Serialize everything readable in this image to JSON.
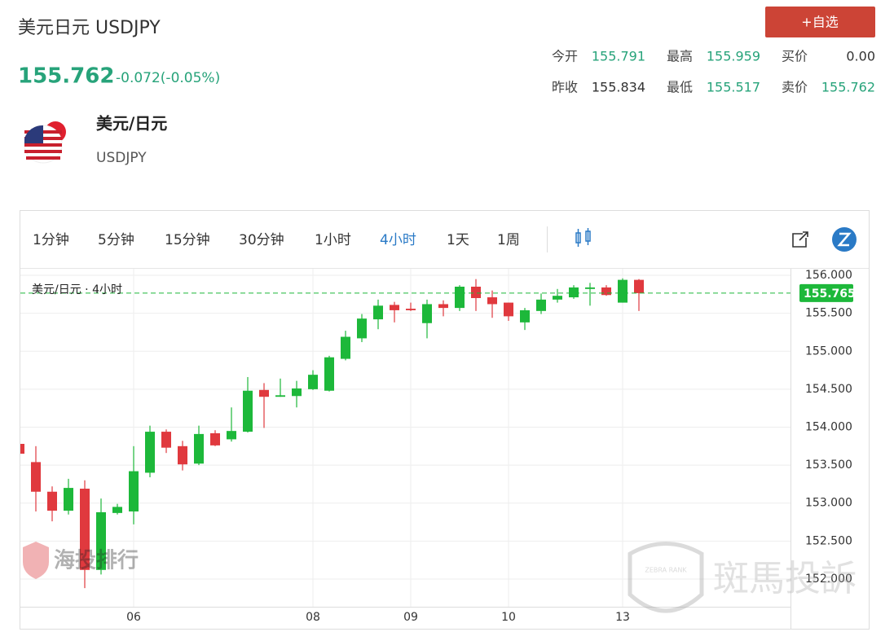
{
  "header": {
    "title": "美元日元 USDJPY",
    "price": "155.762",
    "change": "-0.072(-0.05%)",
    "button": "+自选",
    "stats": [
      [
        "今开",
        "155.791"
      ],
      [
        "最高",
        "155.959"
      ],
      [
        "买价",
        "0.00"
      ],
      [
        "昨收",
        "155.834"
      ],
      [
        "最低",
        "155.517"
      ],
      [
        "卖价",
        "155.762"
      ]
    ]
  },
  "instrument": {
    "name": "美元/日元",
    "code": "USDJPY"
  },
  "toolbar": {
    "tabs": [
      "1分钟",
      "5分钟",
      "15分钟",
      "30分钟",
      "1小时",
      "4小时",
      "1天",
      "1周"
    ],
    "active": 5
  },
  "watermarks": {
    "left": "海投排行",
    "right": "斑馬投訴",
    "badge": "ZEBRA RANK"
  },
  "chart_data": {
    "type": "candlestick",
    "title": "美元/日元 · 4小时",
    "categories": [
      null,
      null,
      null,
      null,
      null,
      null,
      null,
      "06",
      null,
      null,
      null,
      null,
      null,
      null,
      null,
      null,
      null,
      null,
      "08",
      null,
      null,
      null,
      null,
      null,
      "09",
      null,
      null,
      null,
      null,
      null,
      "10",
      null,
      null,
      null,
      null,
      null,
      null,
      "13",
      null
    ],
    "series": [
      {
        "name": "open",
        "values": [
          153.78,
          153.54,
          153.15,
          152.9,
          153.19,
          152.12,
          152.87,
          152.89,
          153.4,
          153.94,
          153.75,
          153.52,
          153.92,
          153.84,
          153.94,
          154.49,
          154.4,
          154.41,
          154.5,
          154.48,
          154.9,
          155.17,
          155.42,
          155.61,
          155.56,
          155.37,
          155.62,
          155.57,
          155.85,
          155.71,
          155.64,
          155.38,
          155.53,
          155.68,
          155.71,
          155.82,
          155.84,
          155.64,
          155.94
        ]
      },
      {
        "name": "high",
        "values": [
          153.8,
          153.75,
          153.22,
          153.32,
          153.3,
          153.06,
          152.99,
          153.75,
          154.02,
          153.97,
          153.82,
          154.02,
          153.96,
          154.26,
          154.66,
          154.58,
          154.64,
          154.61,
          154.75,
          154.94,
          155.27,
          155.49,
          155.68,
          155.65,
          155.64,
          155.68,
          155.67,
          155.87,
          155.95,
          155.8,
          155.64,
          155.57,
          155.76,
          155.82,
          155.87,
          155.9,
          155.87,
          155.96,
          155.95
        ]
      },
      {
        "name": "low",
        "values": [
          153.62,
          152.89,
          152.76,
          152.85,
          151.88,
          152.06,
          152.85,
          152.72,
          153.34,
          153.66,
          153.43,
          153.5,
          153.75,
          153.81,
          153.93,
          153.99,
          154.4,
          154.26,
          154.49,
          154.47,
          154.88,
          155.12,
          155.29,
          155.38,
          155.53,
          155.17,
          155.46,
          155.53,
          155.53,
          155.44,
          155.4,
          155.28,
          155.49,
          155.64,
          155.69,
          155.6,
          155.73,
          155.64,
          155.53
        ]
      },
      {
        "name": "close",
        "values": [
          153.65,
          153.15,
          152.9,
          153.2,
          152.12,
          152.88,
          152.95,
          153.42,
          153.94,
          153.73,
          153.51,
          153.91,
          153.76,
          153.95,
          154.48,
          154.4,
          154.42,
          154.51,
          154.69,
          154.92,
          155.19,
          155.43,
          155.6,
          155.54,
          155.54,
          155.62,
          155.57,
          155.85,
          155.7,
          155.62,
          155.46,
          155.54,
          155.68,
          155.73,
          155.84,
          155.84,
          155.74,
          155.94,
          155.765
        ]
      }
    ],
    "up_color": "#1db83a",
    "down_color": "#e0393e",
    "last_price": 155.765,
    "ylim": [
      151.635,
      156.086
    ],
    "yticks": [
      {
        "value": 152,
        "label": "152.000"
      },
      {
        "value": 152.5,
        "label": "152.500"
      },
      {
        "value": 153,
        "label": "153.000"
      },
      {
        "value": 153.5,
        "label": "153.500"
      },
      {
        "value": 154,
        "label": "154.000"
      },
      {
        "value": 154.5,
        "label": "154.500"
      },
      {
        "value": 155,
        "label": "155.000"
      },
      {
        "value": 155.5,
        "label": "155.500"
      },
      {
        "value": 156,
        "label": "156.000"
      }
    ],
    "grid": true
  }
}
